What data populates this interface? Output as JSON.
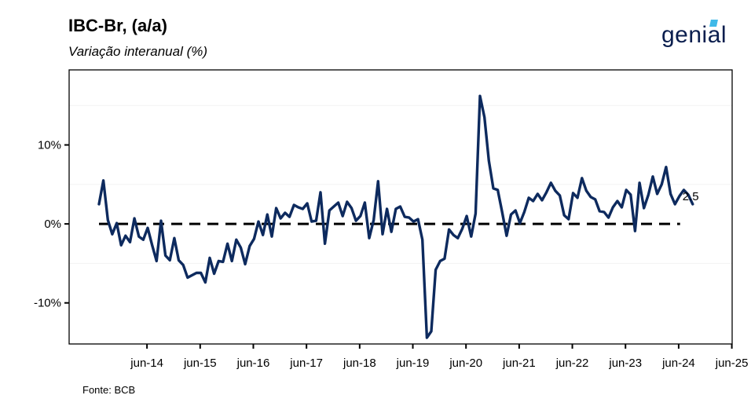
{
  "header": {
    "title": "IBC-Br, (a/a)",
    "subtitle": "Variação interanual (%)",
    "logo_text": "genial"
  },
  "footer": {
    "source": "Fonte: BCB"
  },
  "colors": {
    "line": "#0d2a5e",
    "reference": "#000000",
    "logo": "#0a1e4e",
    "logo_accent": "#3fb9e8"
  },
  "chart_data": {
    "type": "line",
    "title": "IBC-Br, (a/a)",
    "subtitle": "Variação interanual (%)",
    "xlabel": "",
    "ylabel": "",
    "x_start": "2013-10",
    "x_ticks": [
      "jun-14",
      "jun-15",
      "jun-16",
      "jun-17",
      "jun-18",
      "jun-19",
      "jun-20",
      "jun-21",
      "jun-22",
      "jun-23",
      "jun-24",
      "jun-25"
    ],
    "y_ticks": [
      -10,
      0,
      10
    ],
    "y_tick_labels": [
      "-10%",
      "0%",
      "10%"
    ],
    "ylim": [
      -15.2,
      19.5
    ],
    "grid": "horizontal faint",
    "reference_line": {
      "y": 0,
      "style": "dashed"
    },
    "end_label": "2.5",
    "series": [
      {
        "values": [
          2.5,
          5.5,
          0.5,
          -1.3,
          0.1,
          -2.7,
          -1.5,
          -2.3,
          0.7,
          -1.6,
          -2.0,
          -0.5,
          -2.7,
          -4.7,
          0.4,
          -4.0,
          -4.6,
          -1.8,
          -4.6,
          -5.2,
          -6.8,
          -6.5,
          -6.2,
          -6.2,
          -7.4,
          -4.3,
          -6.3,
          -4.7,
          -4.8,
          -2.5,
          -4.7,
          -2.0,
          -3.0,
          -5.1,
          -2.8,
          -1.9,
          0.3,
          -1.4,
          1.2,
          -1.6,
          2.0,
          0.7,
          1.4,
          0.9,
          2.4,
          2.1,
          1.9,
          2.6,
          0.3,
          0.4,
          4.0,
          -2.5,
          1.7,
          2.2,
          2.7,
          1.0,
          2.8,
          2.0,
          0.4,
          1.0,
          2.7,
          -1.8,
          0.5,
          5.4,
          -1.3,
          1.9,
          -1.0,
          1.9,
          2.2,
          0.9,
          0.8,
          0.3,
          0.6,
          -2.0,
          -14.4,
          -13.6,
          -5.8,
          -4.7,
          -4.4,
          -0.7,
          -1.4,
          -1.8,
          -0.6,
          1.0,
          -1.6,
          1.3,
          16.2,
          13.5,
          8.0,
          4.5,
          4.3,
          1.5,
          -1.5,
          1.2,
          1.7,
          0.1,
          1.5,
          3.3,
          2.9,
          3.8,
          3.0,
          4.0,
          5.2,
          4.2,
          3.6,
          1.1,
          0.6,
          3.9,
          3.3,
          5.8,
          4.2,
          3.4,
          3.1,
          1.6,
          1.5,
          0.8,
          2.1,
          2.9,
          2.1,
          4.3,
          3.7,
          -0.9,
          5.2,
          2.0,
          3.7,
          6.0,
          3.8,
          5.0,
          7.2,
          3.8,
          2.5,
          3.5,
          4.3,
          3.7,
          2.5
        ]
      }
    ]
  }
}
